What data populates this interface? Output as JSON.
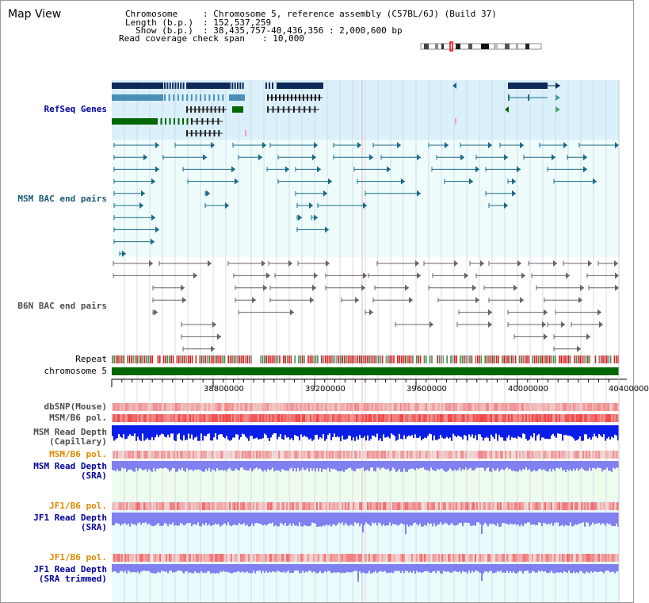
{
  "title": "Map View",
  "info": {
    "chromosome_key": "Chromosome",
    "chromosome_val": ": Chromosome 5, reference assembly (C57BL/6J) (Build 37)",
    "length_key": "Length (b.p.)",
    "length_val": ": 152,537,259",
    "show_key": "Show (b.p.)",
    "show_val": ": 38,435,757-40,436,356 : 2,000,600 bp",
    "span_key": "Read coverage check span",
    "span_val": ": 10,000"
  },
  "tracks": {
    "refseq": "RefSeq Genes",
    "msm_bac": "MSM BAC end pairs",
    "b6n_bac": "B6N BAC end pairs",
    "repeat": "Repeat",
    "chromosome": "chromosome 5",
    "dbsnp": "dbSNP(Mouse)",
    "msm_b6_pol_1": "MSM/B6 pol.",
    "msm_depth_cap_1": "MSM Read Depth",
    "msm_depth_cap_2": "(Capillary)",
    "msm_b6_pol_2": "MSM/B6 pol.",
    "msm_depth_sra_1": "MSM Read Depth",
    "msm_depth_sra_2": "(SRA)",
    "jf1_b6_pol_1": "JF1/B6 pol.",
    "jf1_depth_sra_1": "JF1 Read Depth",
    "jf1_depth_sra_2": "(SRA)",
    "jf1_b6_pol_2": "JF1/B6 pol.",
    "jf1_depth_trim_1": "JF1 Read Depth",
    "jf1_depth_trim_2": "(SRA trimmed)"
  },
  "axis": {
    "ticks": [
      "38800000",
      "39200000",
      "39600000",
      "40000000",
      "40400000"
    ]
  },
  "colors": {
    "refseq_dark": "#0d2a5a",
    "refseq_light": "#4a8fb8",
    "refseq_green": "#006600",
    "bac_teal": "#1a6a86",
    "bac_gray": "#666666",
    "chromosome_bar": "#006600",
    "depth_cap": "#0b1ee8",
    "depth_sra": "#8080f0"
  }
}
